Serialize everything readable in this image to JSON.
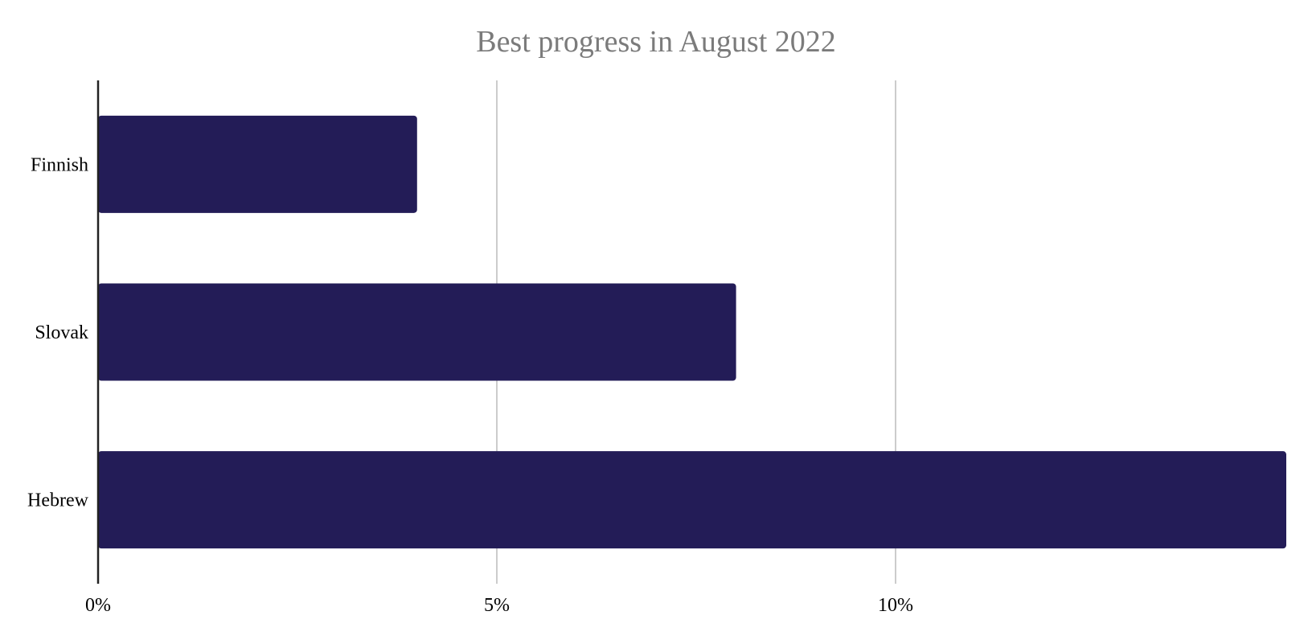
{
  "chart_data": {
    "type": "bar",
    "orientation": "horizontal",
    "title": "Best progress in August 2022",
    "xlabel": "",
    "ylabel": "",
    "categories": [
      "Finnish",
      "Slovak",
      "Hebrew"
    ],
    "values": [
      4.0,
      8.0,
      15.0
    ],
    "xlim": [
      0,
      15
    ],
    "x_ticks": [
      0,
      5,
      10
    ],
    "x_tick_labels": [
      "0%",
      "5%",
      "10%"
    ],
    "grid": "vertical",
    "legend": "none",
    "colors": {
      "bar": "#231c57",
      "grid": "#cccccc",
      "axis": "#222222",
      "title": "#7b7b7b"
    }
  }
}
